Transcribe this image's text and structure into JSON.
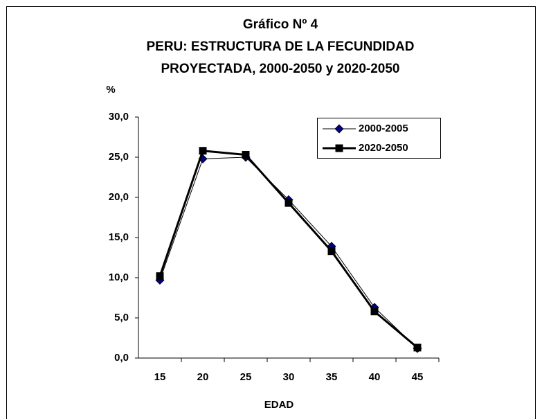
{
  "chart_data": {
    "type": "line",
    "title": [
      "Gráfico Nº  4",
      "PERU: ESTRUCTURA DE LA FECUNDIDAD",
      "PROYECTADA, 2000-2050 y 2020-2050"
    ],
    "y_label": "%",
    "x_label": "EDAD",
    "categories": [
      "15",
      "20",
      "25",
      "30",
      "35",
      "40",
      "45"
    ],
    "series": [
      {
        "name": "2000-2005",
        "color": "#000080",
        "marker": "diamond",
        "values": [
          9.7,
          24.8,
          25.0,
          19.7,
          13.9,
          6.3,
          1.2
        ]
      },
      {
        "name": "2020-2050",
        "color": "#000000",
        "marker": "square",
        "values": [
          10.2,
          25.8,
          25.3,
          19.3,
          13.3,
          5.8,
          1.3
        ]
      }
    ],
    "ylim": [
      0,
      30
    ],
    "yticks": [
      {
        "value": 0,
        "label": "0,0"
      },
      {
        "value": 5,
        "label": "5,0"
      },
      {
        "value": 10,
        "label": "10,0"
      },
      {
        "value": 15,
        "label": "15,0"
      },
      {
        "value": 20,
        "label": "20,0"
      },
      {
        "value": 25,
        "label": "25,0"
      },
      {
        "value": 30,
        "label": "30,0"
      }
    ],
    "legend": "top-right"
  }
}
